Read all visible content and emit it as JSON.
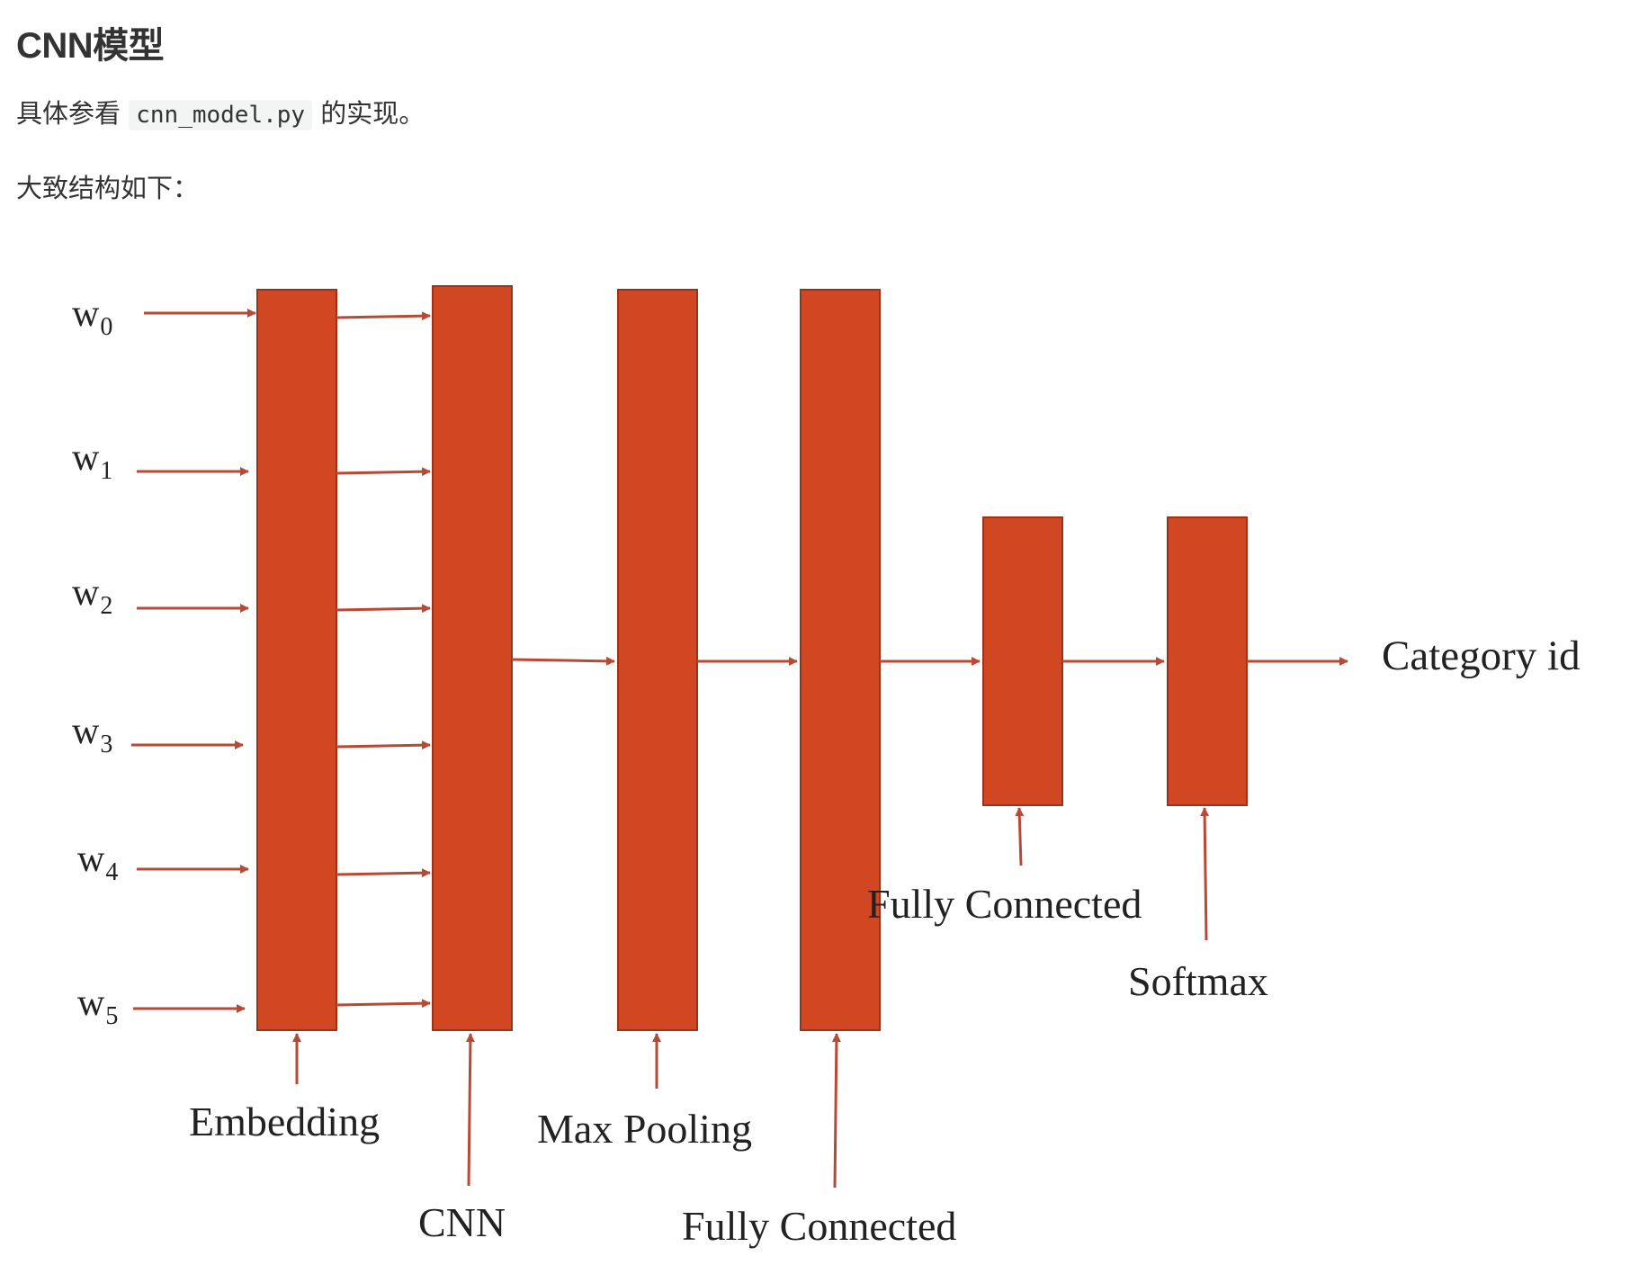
{
  "heading": "CNN模型",
  "intro": {
    "prefix": "具体参看",
    "code": "cnn_model.py",
    "suffix": "的实现。"
  },
  "structure_label": "大致结构如下：",
  "diagram": {
    "colors": {
      "block": "#D14722",
      "arrow": "#B84A35",
      "text": "#222222"
    },
    "inputs": [
      {
        "var": "w",
        "sub": "0"
      },
      {
        "var": "w",
        "sub": "1"
      },
      {
        "var": "w",
        "sub": "2"
      },
      {
        "var": "w",
        "sub": "3"
      },
      {
        "var": "w",
        "sub": "4"
      },
      {
        "var": "w",
        "sub": "5"
      }
    ],
    "layers": {
      "embedding": "Embedding",
      "cnn": "CNN",
      "max_pooling": "Max Pooling",
      "fc1": "Fully Connected",
      "fc2": "Fully Connected",
      "softmax": "Softmax"
    },
    "output": "Category id"
  }
}
